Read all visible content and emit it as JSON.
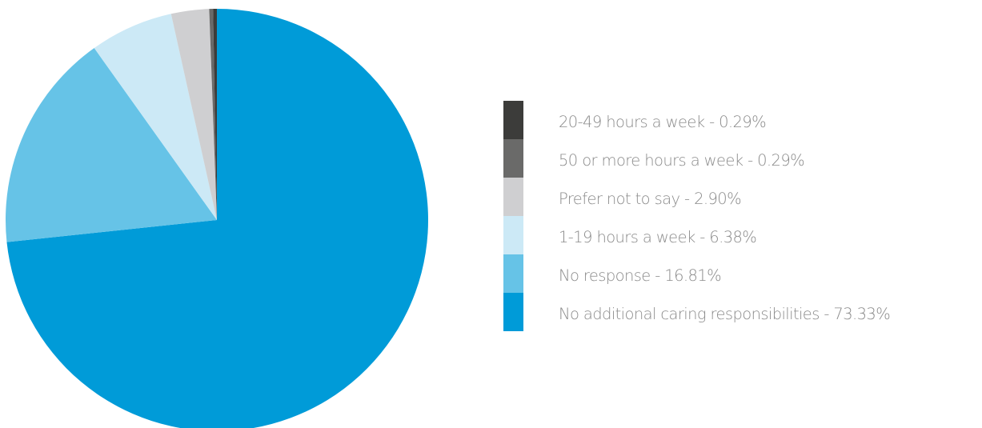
{
  "chart_data": {
    "type": "pie",
    "slices": [
      {
        "label": "No additional caring responsibilities",
        "display": "73.33%",
        "value": 73.33,
        "color": "#009bd8"
      },
      {
        "label": "No response",
        "display": "16.81%",
        "value": 16.81,
        "color": "#66c3e7"
      },
      {
        "label": "1-19 hours a week",
        "display": "6.38%",
        "value": 6.38,
        "color": "#cce9f6"
      },
      {
        "label": "Prefer not to say",
        "display": "2.90%",
        "value": 2.9,
        "color": "#cfcfd1"
      },
      {
        "label": "50 or more hours a week",
        "display": "0.29%",
        "value": 0.29,
        "color": "#6a6a69"
      },
      {
        "label": "20-49 hours a week",
        "display": "0.29%",
        "value": 0.29,
        "color": "#3c3c3a"
      }
    ],
    "legend": [
      {
        "text": "20-49 hours a week  -  0.29%",
        "color": "#3c3c3a"
      },
      {
        "text": "50 or more hours a week  -  0.29%",
        "color": "#6a6a69"
      },
      {
        "text": "Prefer not to say  -  2.90%",
        "color": "#cfcfd1"
      },
      {
        "text": "1-19 hours a week  -  6.38%",
        "color": "#cce9f6"
      },
      {
        "text": "No response  -  16.81%",
        "color": "#66c3e7"
      },
      {
        "text": "No additional caring responsibilities  -  73.33%",
        "color": "#009bd8"
      }
    ],
    "legend_position": "right"
  }
}
